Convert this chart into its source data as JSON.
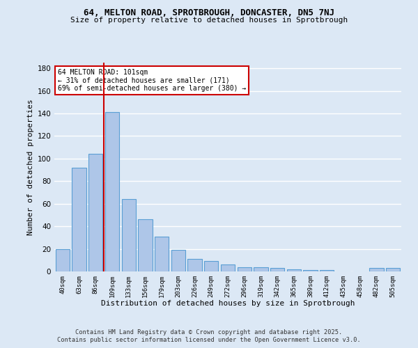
{
  "title_line1": "64, MELTON ROAD, SPROTBROUGH, DONCASTER, DN5 7NJ",
  "title_line2": "Size of property relative to detached houses in Sprotbrough",
  "xlabel": "Distribution of detached houses by size in Sprotbrough",
  "ylabel": "Number of detached properties",
  "categories": [
    "40sqm",
    "63sqm",
    "86sqm",
    "109sqm",
    "133sqm",
    "156sqm",
    "179sqm",
    "203sqm",
    "226sqm",
    "249sqm",
    "272sqm",
    "296sqm",
    "319sqm",
    "342sqm",
    "365sqm",
    "389sqm",
    "412sqm",
    "435sqm",
    "458sqm",
    "482sqm",
    "505sqm"
  ],
  "values": [
    20,
    92,
    104,
    141,
    64,
    46,
    31,
    19,
    11,
    9,
    6,
    4,
    4,
    3,
    2,
    1,
    1,
    0,
    0,
    3,
    3
  ],
  "bar_color": "#aec6e8",
  "bar_edge_color": "#5a9fd4",
  "background_color": "#dce8f5",
  "grid_color": "#ffffff",
  "vline_x_index": 3,
  "vline_color": "#cc0000",
  "annotation_text": "64 MELTON ROAD: 101sqm\n← 31% of detached houses are smaller (171)\n69% of semi-detached houses are larger (380) →",
  "annotation_box_facecolor": "#ffffff",
  "annotation_box_edgecolor": "#cc0000",
  "ylim": [
    0,
    185
  ],
  "yticks": [
    0,
    20,
    40,
    60,
    80,
    100,
    120,
    140,
    160,
    180
  ],
  "footnote_line1": "Contains HM Land Registry data © Crown copyright and database right 2025.",
  "footnote_line2": "Contains public sector information licensed under the Open Government Licence v3.0."
}
